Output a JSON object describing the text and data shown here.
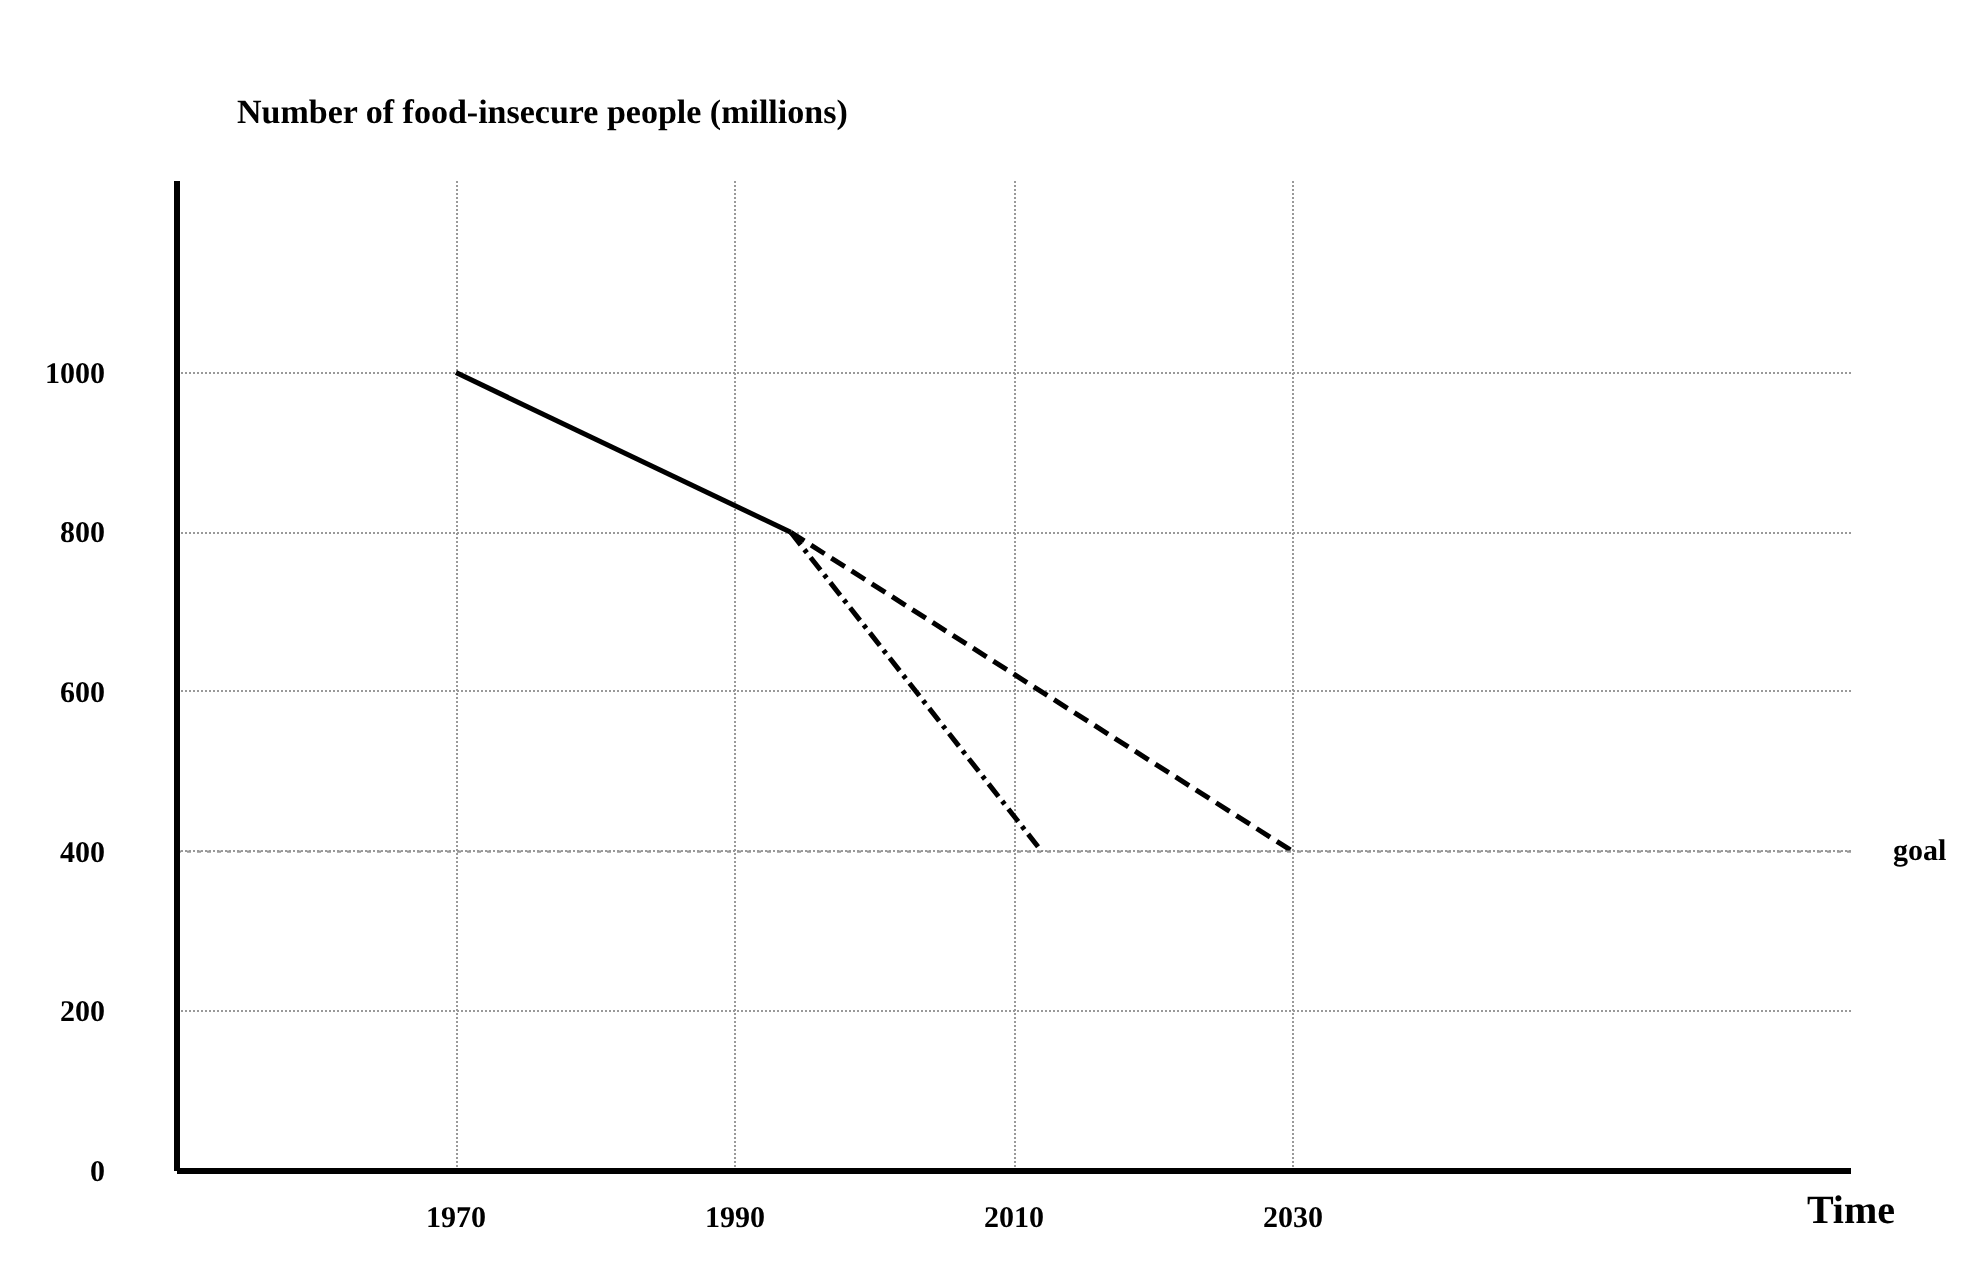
{
  "chart_data": {
    "type": "line",
    "title": "Number of food-insecure people  (millions)",
    "xlabel": "Time",
    "xlim": [
      1950,
      2070
    ],
    "xticks": [
      1970,
      1990,
      2010,
      2030
    ],
    "ylim": [
      0,
      1240
    ],
    "yticks": [
      0,
      200,
      400,
      600,
      800,
      1000
    ],
    "grid": true,
    "marker": "none",
    "series": [
      {
        "color": "#000000",
        "line_style": "solid",
        "x": [
          1970,
          1994
        ],
        "values": [
          1000,
          800
        ]
      },
      {
        "color": "#000000",
        "line_style": "dashed",
        "x": [
          1994,
          2030
        ],
        "values": [
          800,
          400
        ]
      },
      {
        "color": "#000000",
        "line_style": "dashdot",
        "x": [
          1994,
          2012
        ],
        "values": [
          800,
          400
        ]
      }
    ],
    "ref_lines": [
      {
        "axis": "y",
        "value": 400,
        "label": "goal",
        "color": "#999999",
        "line_style": "dotted"
      }
    ]
  }
}
